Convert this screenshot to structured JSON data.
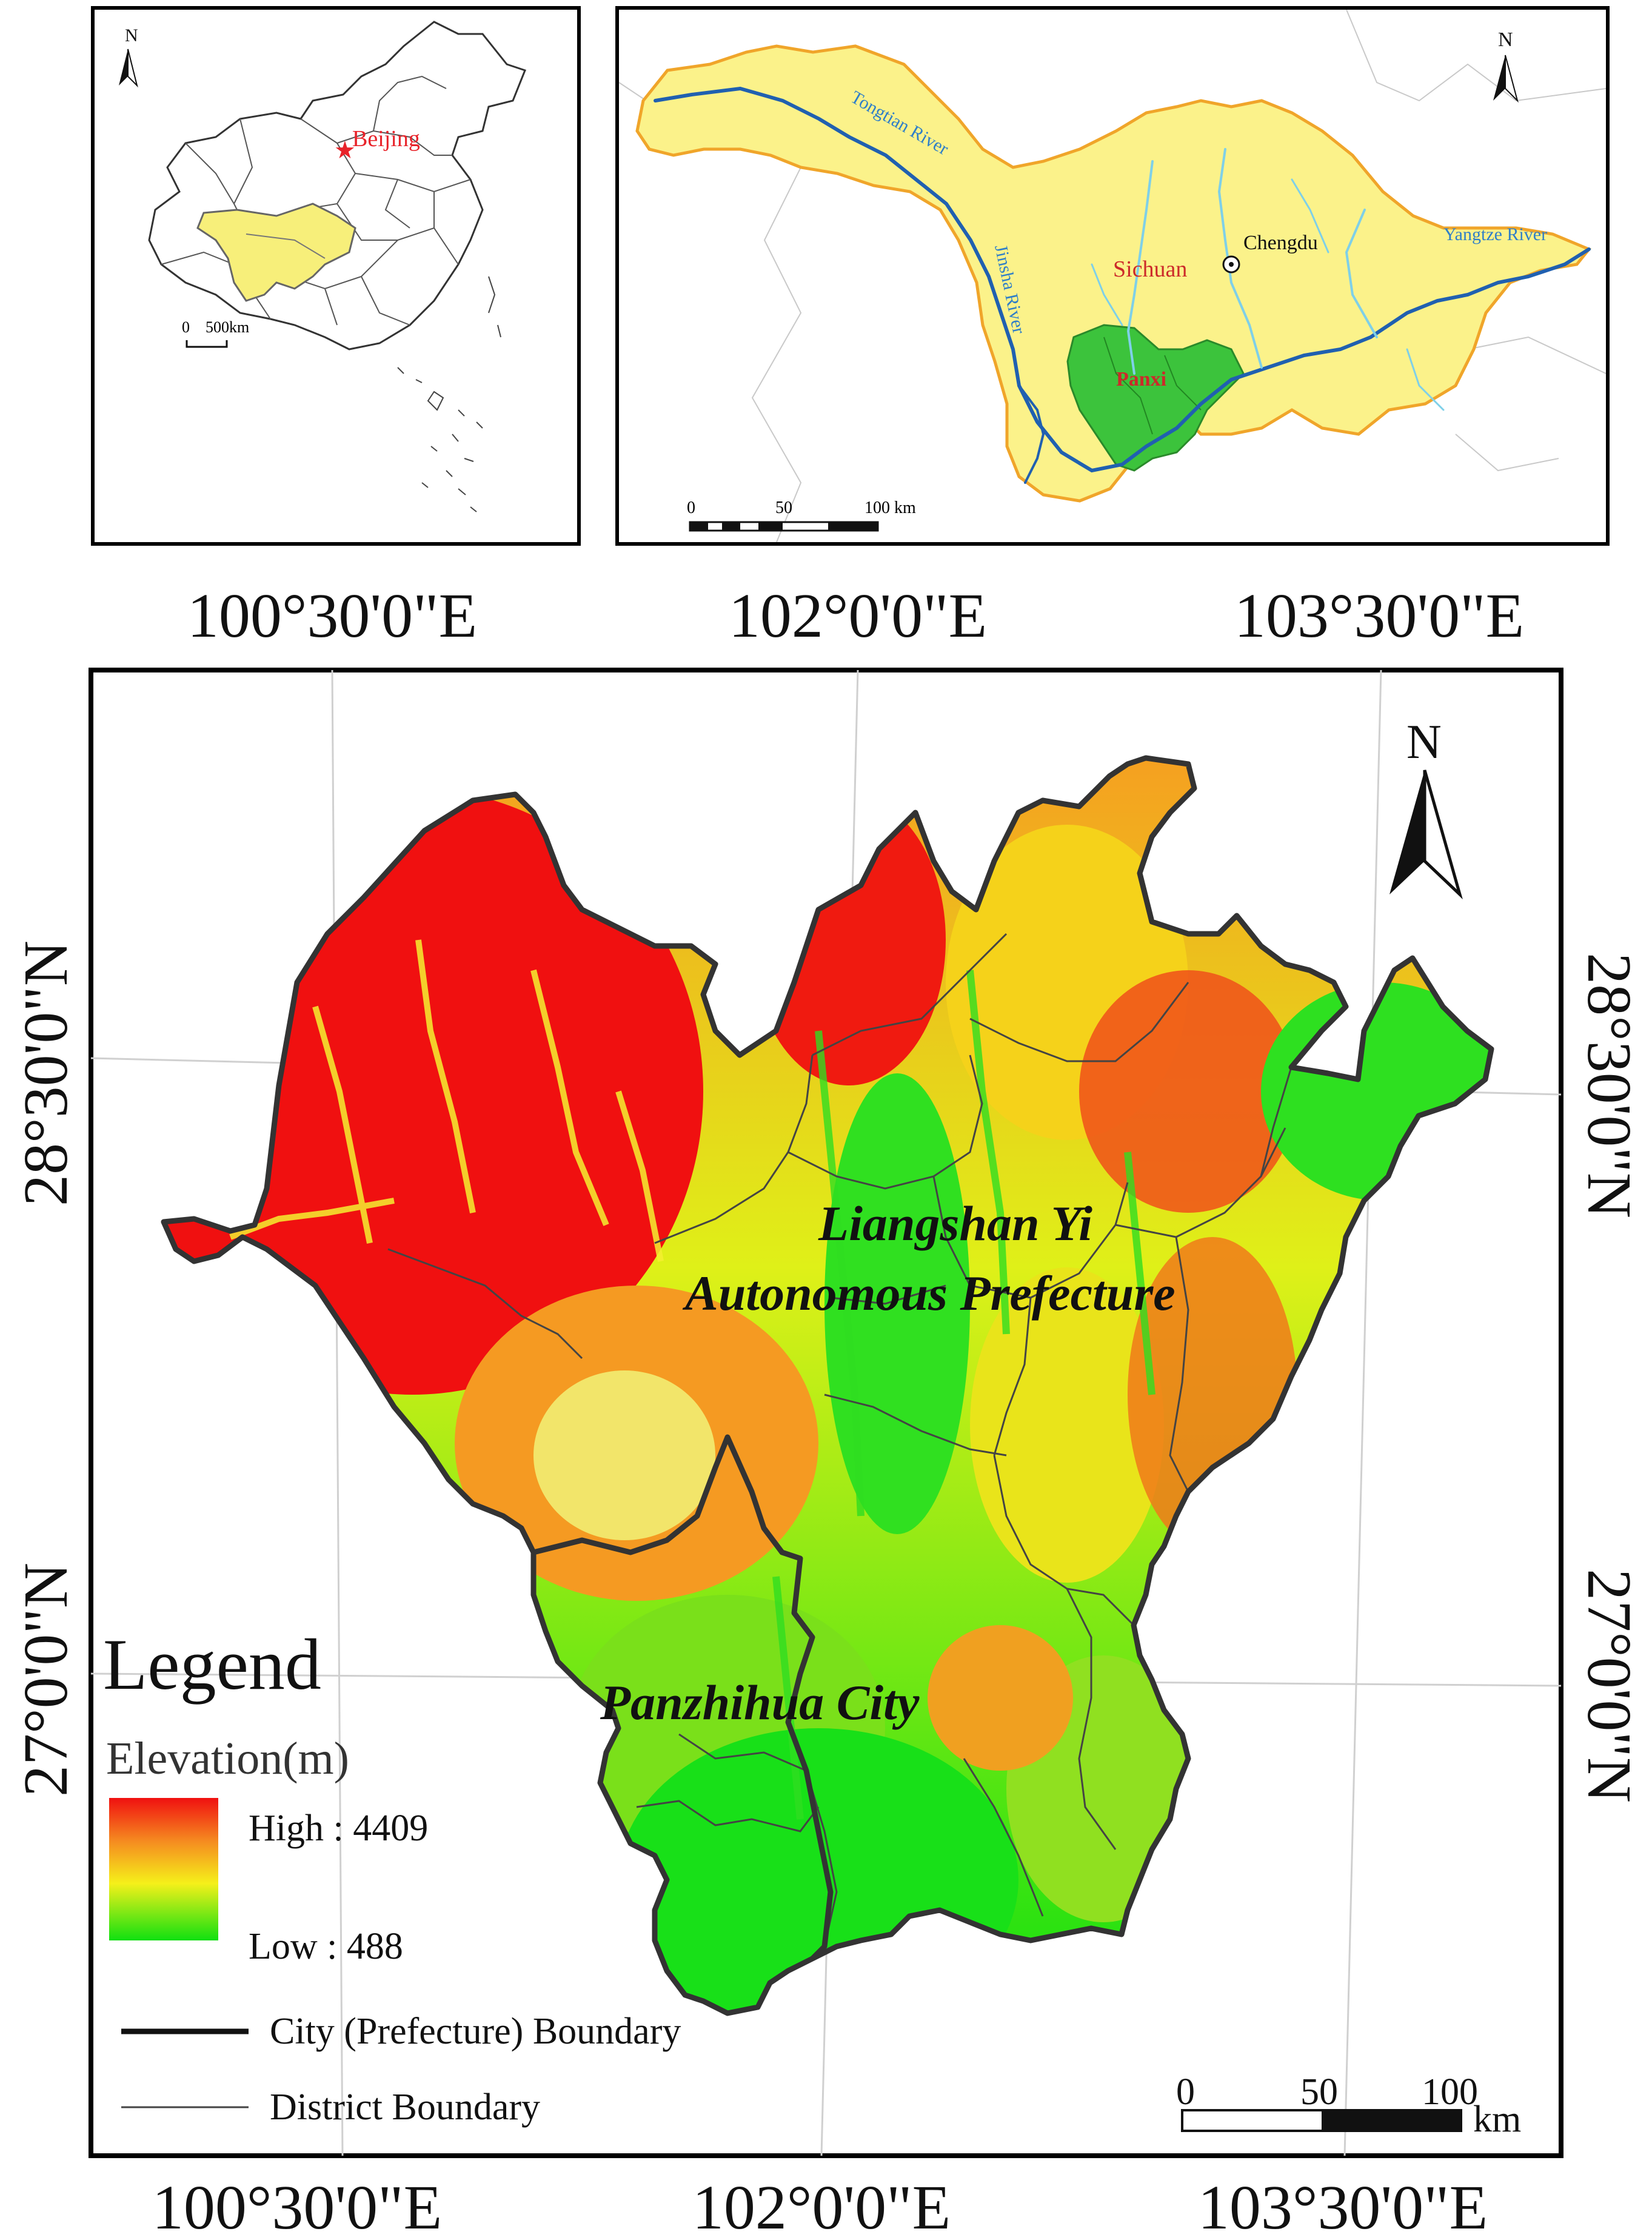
{
  "inset_china": {
    "north": "N",
    "capital_label": "Beijing",
    "scale_zero": "0",
    "scale_label": "500km",
    "colors": {
      "region": "#f7ef7a",
      "capital": "#e8232a",
      "outline": "#444444"
    }
  },
  "inset_sichuan": {
    "north": "N",
    "rivers": [
      "Tongtian River",
      "Jinsha River",
      "Yangtze River"
    ],
    "city": "Chengdu",
    "province": "Sichuan",
    "region": "Panxi",
    "scale": [
      "0",
      "50",
      "100 km"
    ],
    "colors": {
      "province": "#fbf28a",
      "province_edge": "#f0a52a",
      "river": "#2f7fc8",
      "panxi": "#3cc33c",
      "label_red": "#cc2a2a"
    }
  },
  "main_map": {
    "north": "N",
    "lon_labels": [
      "100°30'0\"E",
      "102°0'0\"E",
      "103°30'0\"E"
    ],
    "lat_labels": [
      "28°30'0\"N",
      "27°0'0\"N"
    ],
    "region_labels": [
      "Liangshan Yi",
      "Autonomous Prefecture",
      "Panzhihua City"
    ],
    "scale": [
      "0",
      "50",
      "100",
      "km"
    ],
    "colors": {
      "high": "#f01010",
      "mid": "#f5f01a",
      "low": "#10e010",
      "boundary": "#333333"
    }
  },
  "legend": {
    "title": "Legend",
    "elevation_title": "Elevation(m)",
    "high_label": "High : 4409",
    "low_label": "Low : 488",
    "city_boundary": "City (Prefecture) Boundary",
    "district_boundary": "District Boundary"
  }
}
